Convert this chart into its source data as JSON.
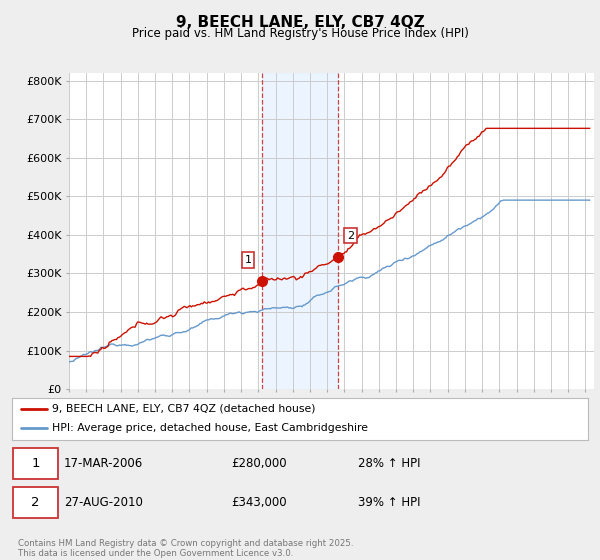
{
  "title": "9, BEECH LANE, ELY, CB7 4QZ",
  "subtitle": "Price paid vs. HM Land Registry's House Price Index (HPI)",
  "ylabel_ticks": [
    "£0",
    "£100K",
    "£200K",
    "£300K",
    "£400K",
    "£500K",
    "£600K",
    "£700K",
    "£800K"
  ],
  "ytick_values": [
    0,
    100000,
    200000,
    300000,
    400000,
    500000,
    600000,
    700000,
    800000
  ],
  "ylim": [
    0,
    820000
  ],
  "xlim_start": 1995.0,
  "xlim_end": 2025.5,
  "hpi_color": "#6699cc",
  "price_color": "#cc1100",
  "vline_color": "#cc4444",
  "sale1_x": 2006.21,
  "sale1_y": 280000,
  "sale2_x": 2010.65,
  "sale2_y": 343000,
  "legend1_label": "9, BEECH LANE, ELY, CB7 4QZ (detached house)",
  "legend2_label": "HPI: Average price, detached house, East Cambridgeshire",
  "table_rows": [
    {
      "num": "1",
      "date": "17-MAR-2006",
      "price": "£280,000",
      "hpi": "28% ↑ HPI"
    },
    {
      "num": "2",
      "date": "27-AUG-2010",
      "price": "£343,000",
      "hpi": "39% ↑ HPI"
    }
  ],
  "footnote": "Contains HM Land Registry data © Crown copyright and database right 2025.\nThis data is licensed under the Open Government Licence v3.0.",
  "bg_color": "#eeeeee",
  "plot_bg_color": "#ffffff",
  "grid_color": "#cccccc"
}
